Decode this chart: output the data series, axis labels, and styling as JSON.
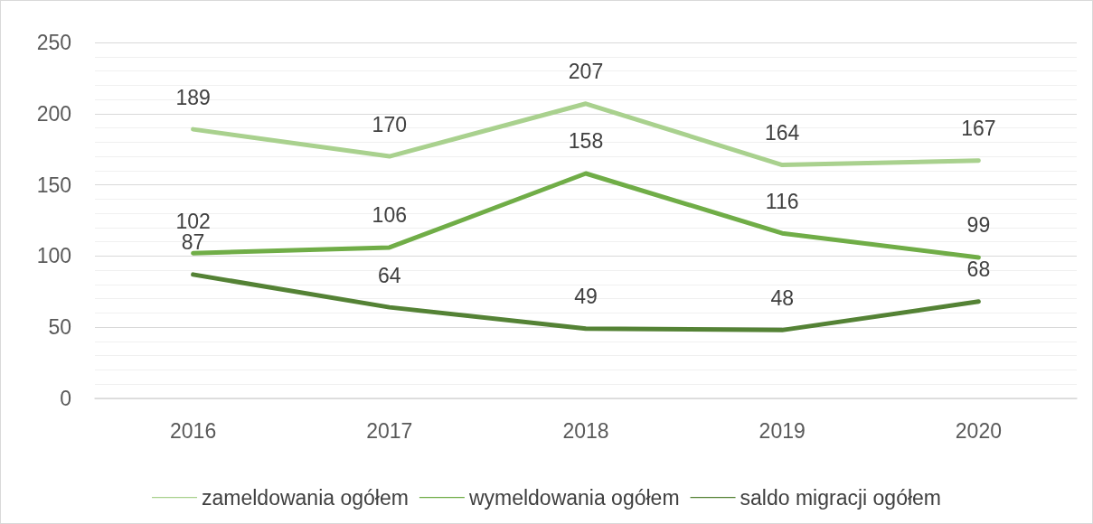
{
  "chart_data": {
    "type": "line",
    "categories": [
      "2016",
      "2017",
      "2018",
      "2019",
      "2020"
    ],
    "series": [
      {
        "name": "zameldowania ogółem",
        "color": "#a9d18e",
        "values": [
          189,
          170,
          207,
          164,
          167
        ]
      },
      {
        "name": "wymeldowania ogółem",
        "color": "#70ad47",
        "values": [
          102,
          106,
          158,
          116,
          99
        ]
      },
      {
        "name": "saldo migracji ogółem",
        "color": "#548235",
        "values": [
          87,
          64,
          49,
          48,
          68
        ]
      }
    ],
    "ylim": [
      0,
      250
    ],
    "yticks": [
      0,
      50,
      100,
      150,
      200,
      250
    ],
    "grid": "y",
    "legend": "bottom",
    "data_labels": true,
    "marker": "none",
    "line_style": "solid"
  }
}
